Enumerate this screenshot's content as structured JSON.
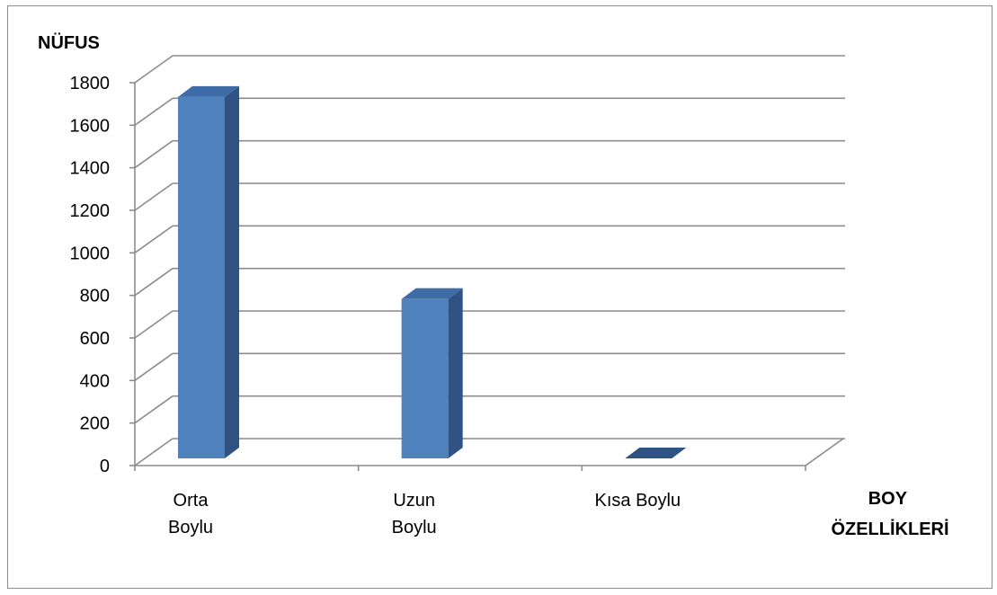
{
  "chart_data": {
    "type": "bar",
    "three_d": true,
    "ylabel": "NÜFUS",
    "xlabel": [
      "BOY",
      "ÖZELLİKLERİ"
    ],
    "categories": [
      [
        "Orta",
        "Boylu"
      ],
      [
        "Uzun",
        "Boylu"
      ],
      [
        "Kısa Boylu"
      ]
    ],
    "values": [
      1750,
      800,
      0
    ],
    "ylim": [
      0,
      1800
    ],
    "yticks": [
      "0",
      "200",
      "400",
      "600",
      "800",
      "1000",
      "1200",
      "1400",
      "1600",
      "1800"
    ],
    "grid": true,
    "legend": "none",
    "colors": {
      "bar_front": "#4f81bd",
      "bar_side": "#2f5283",
      "bar_top": "#3f6ca6",
      "grid": "#8c8c8c",
      "frame": "#8c8c8c"
    }
  }
}
